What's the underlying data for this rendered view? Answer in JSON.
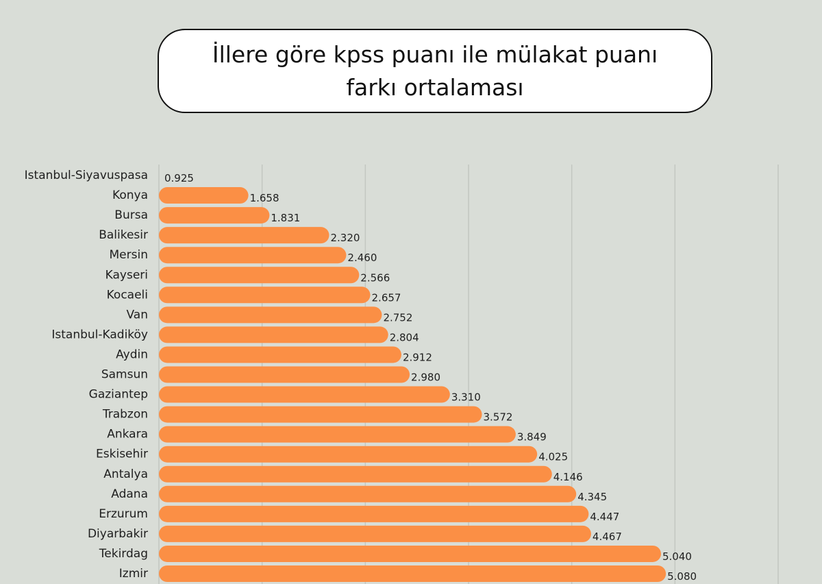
{
  "chart_data": {
    "type": "bar",
    "orientation": "horizontal",
    "title": "İllere göre kpss puanı ile mülakat puanı farkı ortalaması",
    "categories": [
      "Istanbul-Siyavuspasa",
      "Konya",
      "Bursa",
      "Balikesir",
      "Mersin",
      "Kayseri",
      "Kocaeli",
      "Van",
      "Istanbul-Kadiköy",
      "Aydin",
      "Samsun",
      "Gaziantep",
      "Trabzon",
      "Ankara",
      "Eskisehir",
      "Antalya",
      "Adana",
      "Erzurum",
      "Diyarbakir",
      "Tekirdag",
      "Izmir"
    ],
    "values": [
      0.925,
      1.658,
      1.831,
      2.32,
      2.46,
      2.566,
      2.657,
      2.752,
      2.804,
      2.912,
      2.98,
      3.31,
      3.572,
      3.849,
      4.025,
      4.146,
      4.345,
      4.447,
      4.467,
      5.04,
      5.08
    ],
    "value_labels": [
      "0.925",
      "1.658",
      "1.831",
      "2.320",
      "2.460",
      "2.566",
      "2.657",
      "2.752",
      "2.804",
      "2.912",
      "2.980",
      "3.310",
      "3.572",
      "3.849",
      "4.025",
      "4.146",
      "4.345",
      "4.447",
      "4.467",
      "5.040",
      "5.080"
    ],
    "xlim": [
      0.925,
      6.0
    ],
    "grid": true,
    "colors": {
      "bar": "#fb8f45",
      "grid": "#c3c7c1",
      "background": "#d9ddd7"
    }
  }
}
